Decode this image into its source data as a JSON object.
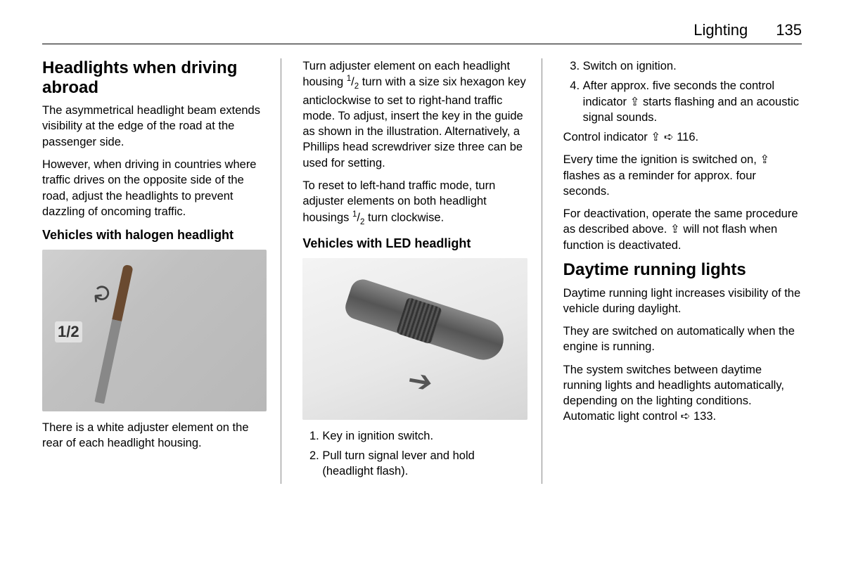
{
  "header": {
    "section": "Lighting",
    "page": "135"
  },
  "col1": {
    "h2": "Headlights when driving abroad",
    "p1": "The asymmetrical headlight beam extends visibility at the edge of the road at the passenger side.",
    "p2": "However, when driving in countries where traffic drives on the opposite side of the road, adjust the headlights to prevent dazzling of oncoming traffic.",
    "h3": "Vehicles with halogen headlight",
    "fig_label": "1/2",
    "p3": "There is a white adjuster element on the rear of each headlight housing."
  },
  "col2": {
    "p1a": "Turn adjuster element on each headlight housing ",
    "p1b": " turn with a size six hexagon key anticlockwise to set to right-hand traffic mode. To adjust, insert the key in the guide as shown in the illustration. Alternatively, a Phillips head screwdriver size three can be used for setting.",
    "frac_num": "1",
    "frac_den": "2",
    "p2a": "To reset to left-hand traffic mode, turn adjuster elements on both headlight housings ",
    "p2b": " turn clockwise.",
    "h3": "Vehicles with LED headlight",
    "step1": "Key in ignition switch.",
    "step2": "Pull turn signal lever and hold (headlight flash)."
  },
  "col3": {
    "step3": "Switch on ignition.",
    "step4a": "After approx. five seconds the control indicator ",
    "step4b": " starts flashing and an acoustic signal sounds.",
    "p1a": "Control indicator ",
    "p1b": " 116.",
    "p2a": "Every time the ignition is switched on, ",
    "p2b": " flashes as a reminder for approx. four seconds.",
    "p3a": "For deactivation, operate the same procedure as described above. ",
    "p3b": " will not flash when function is deactivated.",
    "h2": "Daytime running lights",
    "p4": "Daytime running light increases visibility of the vehicle during daylight.",
    "p5": "They are switched on automatically when the engine is running.",
    "p6a": "The system switches between daytime running lights and headlights automatically, depending on the lighting conditions. Automatic light control ",
    "p6b": " 133."
  },
  "symbols": {
    "indicator": "⇪",
    "ref_arrow": "➪"
  }
}
